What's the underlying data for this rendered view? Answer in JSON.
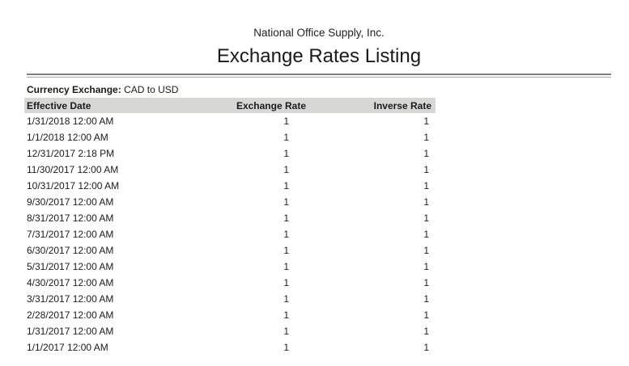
{
  "report": {
    "company": "National Office Supply, Inc.",
    "title": "Exchange Rates Listing",
    "filter_label": "Currency Exchange:",
    "filter_value": "CAD to USD"
  },
  "table": {
    "columns": [
      "Effective Date",
      "Exchange Rate",
      "Inverse Rate"
    ],
    "rows": [
      {
        "date": "1/31/2018 12:00 AM",
        "rate": "1",
        "inverse": "1"
      },
      {
        "date": "1/1/2018 12:00 AM",
        "rate": "1",
        "inverse": "1"
      },
      {
        "date": "12/31/2017 2:18 PM",
        "rate": "1",
        "inverse": "1"
      },
      {
        "date": "11/30/2017 12:00 AM",
        "rate": "1",
        "inverse": "1"
      },
      {
        "date": "10/31/2017 12:00 AM",
        "rate": "1",
        "inverse": "1"
      },
      {
        "date": "9/30/2017 12:00 AM",
        "rate": "1",
        "inverse": "1"
      },
      {
        "date": "8/31/2017 12:00 AM",
        "rate": "1",
        "inverse": "1"
      },
      {
        "date": "7/31/2017 12:00 AM",
        "rate": "1",
        "inverse": "1"
      },
      {
        "date": "6/30/2017 12:00 AM",
        "rate": "1",
        "inverse": "1"
      },
      {
        "date": "5/31/2017 12:00 AM",
        "rate": "1",
        "inverse": "1"
      },
      {
        "date": "4/30/2017 12:00 AM",
        "rate": "1",
        "inverse": "1"
      },
      {
        "date": "3/31/2017 12:00 AM",
        "rate": "1",
        "inverse": "1"
      },
      {
        "date": "2/28/2017 12:00 AM",
        "rate": "1",
        "inverse": "1"
      },
      {
        "date": "1/31/2017 12:00 AM",
        "rate": "1",
        "inverse": "1"
      },
      {
        "date": "1/1/2017 12:00 AM",
        "rate": "1",
        "inverse": "1"
      }
    ]
  },
  "colors": {
    "table_header_bg": "#d7d7d5",
    "rule_dark": "#7f7f7f",
    "rule_light": "#a9a9a9",
    "text": "#1b1b1b"
  }
}
